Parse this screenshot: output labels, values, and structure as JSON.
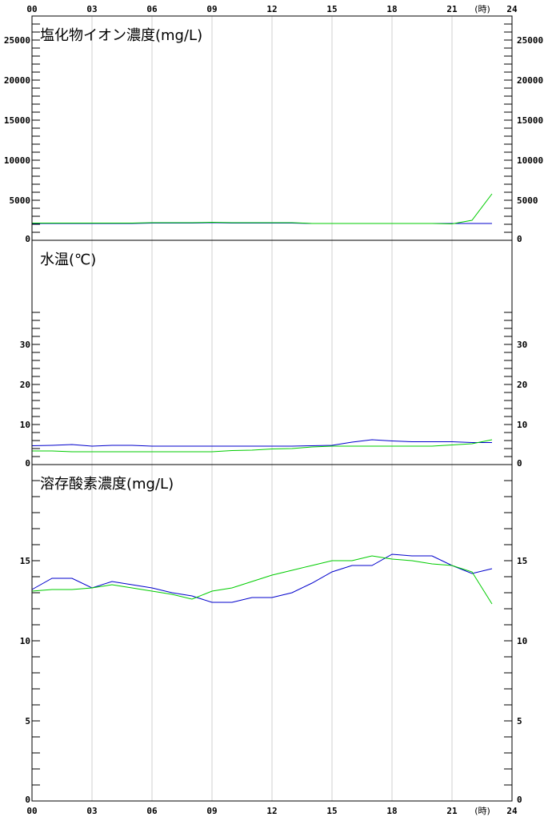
{
  "chart_data": {
    "type": "line",
    "x_ticks": [
      "00",
      "03",
      "06",
      "09",
      "12",
      "15",
      "18",
      "21",
      "24"
    ],
    "x_unit": "(時)",
    "colors": {
      "blue": "#0000cc",
      "green": "#00cc00",
      "grid": "#d0d0d0",
      "axis": "#000000"
    },
    "panels": [
      {
        "key": "chloride",
        "title": "塩化物イオン濃度(mg/L)",
        "ylim": [
          0,
          28000
        ],
        "y_ticks": [
          0,
          5000,
          10000,
          15000,
          20000,
          25000
        ],
        "y_tick_labels": [
          "0",
          "5000",
          "10000",
          "15000",
          "20000",
          "25000"
        ],
        "minor_step": 1000,
        "x": [
          0,
          1,
          2,
          3,
          4,
          5,
          6,
          7,
          8,
          9,
          10,
          11,
          12,
          13,
          14,
          15,
          16,
          17,
          18,
          19,
          20,
          21,
          22,
          23
        ],
        "series": [
          {
            "color": "blue",
            "values": [
              2100,
              2100,
              2100,
              2100,
              2100,
              2100,
              2150,
              2150,
              2150,
              2200,
              2150,
              2150,
              2150,
              2150,
              2100,
              2100,
              2100,
              2100,
              2100,
              2100,
              2100,
              2100,
              2100,
              2100
            ]
          },
          {
            "color": "green",
            "values": [
              2150,
              2150,
              2150,
              2150,
              2150,
              2150,
              2200,
              2200,
              2200,
              2250,
              2200,
              2200,
              2200,
              2200,
              2100,
              2100,
              2100,
              2100,
              2100,
              2100,
              2100,
              2050,
              2500,
              5800
            ]
          }
        ]
      },
      {
        "key": "water_temp",
        "title": "水温(℃)",
        "ylim": [
          0,
          56
        ],
        "y_ticks": [
          0,
          10,
          20,
          30
        ],
        "y_tick_labels": [
          "0",
          "10",
          "20",
          "30"
        ],
        "minor_step": 2,
        "minor_max": 38,
        "x": [
          0,
          1,
          2,
          3,
          4,
          5,
          6,
          7,
          8,
          9,
          10,
          11,
          12,
          13,
          14,
          15,
          16,
          17,
          18,
          19,
          20,
          21,
          22,
          23
        ],
        "series": [
          {
            "color": "blue",
            "values": [
              4.7,
              4.8,
              5.0,
              4.6,
              4.8,
              4.8,
              4.6,
              4.6,
              4.6,
              4.6,
              4.6,
              4.6,
              4.6,
              4.6,
              4.7,
              4.8,
              5.6,
              6.2,
              5.9,
              5.7,
              5.7,
              5.7,
              5.5,
              5.5
            ]
          },
          {
            "color": "green",
            "values": [
              3.4,
              3.4,
              3.2,
              3.2,
              3.2,
              3.2,
              3.2,
              3.2,
              3.2,
              3.2,
              3.5,
              3.6,
              3.9,
              4.0,
              4.4,
              4.6,
              4.6,
              4.6,
              4.6,
              4.6,
              4.6,
              4.9,
              5.2,
              6.2
            ]
          }
        ]
      },
      {
        "key": "dissolved_oxygen",
        "title": "溶存酸素濃度(mg/L)",
        "ylim": [
          0,
          21
        ],
        "y_ticks": [
          0,
          5,
          10,
          15
        ],
        "y_tick_labels": [
          "0",
          "5",
          "10",
          "15"
        ],
        "minor_step": 1,
        "minor_max": 20,
        "x": [
          0,
          1,
          2,
          3,
          4,
          5,
          6,
          7,
          8,
          9,
          10,
          11,
          12,
          13,
          14,
          15,
          16,
          17,
          18,
          19,
          20,
          21,
          22,
          23
        ],
        "series": [
          {
            "color": "blue",
            "values": [
              13.2,
              13.9,
              13.9,
              13.3,
              13.7,
              13.5,
              13.3,
              13.0,
              12.8,
              12.4,
              12.4,
              12.7,
              12.7,
              13.0,
              13.6,
              14.3,
              14.7,
              14.7,
              15.4,
              15.3,
              15.3,
              14.7,
              14.2,
              14.5
            ]
          },
          {
            "color": "green",
            "values": [
              13.1,
              13.2,
              13.2,
              13.3,
              13.5,
              13.3,
              13.1,
              12.9,
              12.6,
              13.1,
              13.3,
              13.7,
              14.1,
              14.4,
              14.7,
              15.0,
              15.0,
              15.3,
              15.1,
              15.0,
              14.8,
              14.7,
              14.3,
              12.3
            ]
          }
        ]
      }
    ]
  }
}
